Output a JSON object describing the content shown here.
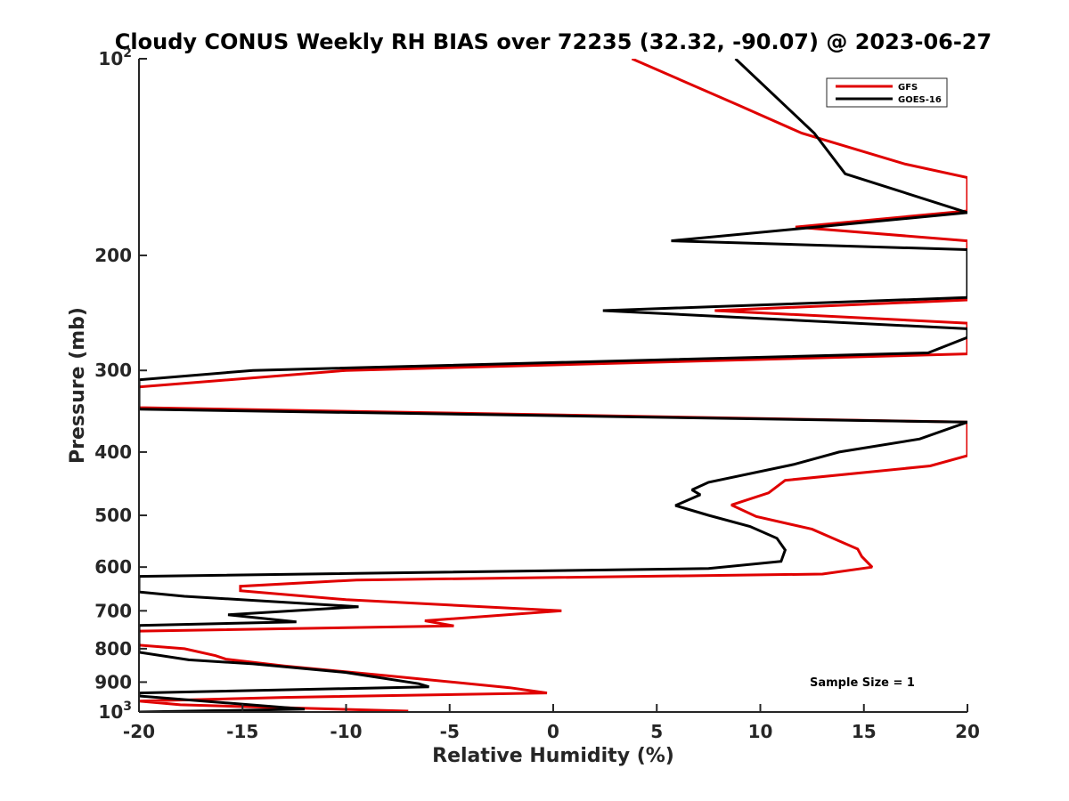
{
  "chart_data": {
    "type": "line",
    "title": "Cloudy CONUS Weekly RH BIAS over 72235 (32.32, -90.07) @ 2023-06-27",
    "xlabel": "Relative Humidity (%)",
    "ylabel": "Pressure (mb)",
    "xlim": [
      -20,
      20
    ],
    "ylim": [
      100,
      1000
    ],
    "yscale": "log",
    "yreverse": true,
    "x_ticks": [
      -20,
      -15,
      -10,
      -5,
      0,
      5,
      10,
      15,
      20
    ],
    "x_tick_labels": [
      "-20",
      "-15",
      "-10",
      "-5",
      "0",
      "5",
      "10",
      "15",
      "20"
    ],
    "y_ticks": [
      100,
      200,
      300,
      400,
      500,
      600,
      700,
      800,
      900,
      1000
    ],
    "y_tick_labels": [
      "10^2",
      "200",
      "300",
      "400",
      "500",
      "600",
      "700",
      "800",
      "900",
      "10^3"
    ],
    "legend_position": "top-right",
    "annotation": "Sample Size = 1",
    "series": [
      {
        "name": "GFS",
        "color": "#e00000",
        "points": [
          [
            3.8,
            100
          ],
          [
            9,
            118
          ],
          [
            12,
            130
          ],
          [
            17,
            145
          ],
          [
            20,
            152
          ],
          [
            20,
            171
          ],
          [
            11.7,
            181
          ],
          [
            20,
            190
          ],
          [
            20,
            234
          ],
          [
            7.8,
            243
          ],
          [
            20,
            254
          ],
          [
            20,
            283
          ],
          [
            -10,
            300
          ],
          [
            -20,
            318
          ],
          [
            -20,
            342
          ],
          [
            20,
            360
          ],
          [
            20,
            405
          ],
          [
            18.2,
            420
          ],
          [
            11.2,
            442
          ],
          [
            10.4,
            462
          ],
          [
            8.6,
            482
          ],
          [
            9.8,
            502
          ],
          [
            12.5,
            525
          ],
          [
            13.5,
            542
          ],
          [
            14.7,
            563
          ],
          [
            14.9,
            578
          ],
          [
            15.4,
            600
          ],
          [
            13,
            615
          ],
          [
            -9.5,
            628
          ],
          [
            -15.1,
            642
          ],
          [
            -15.1,
            652
          ],
          [
            -10,
            673
          ],
          [
            0.4,
            700
          ],
          [
            -6.2,
            725
          ],
          [
            -4.8,
            738
          ],
          [
            -20,
            752
          ],
          [
            -20,
            790
          ],
          [
            -17.8,
            800
          ],
          [
            -16.3,
            820
          ],
          [
            -15.8,
            830
          ],
          [
            -13,
            850
          ],
          [
            -8,
            880
          ],
          [
            -2.1,
            918
          ],
          [
            -0.3,
            935
          ],
          [
            -13,
            950
          ],
          [
            -20,
            962
          ],
          [
            -18,
            975
          ],
          [
            -7,
            997
          ]
        ]
      },
      {
        "name": "GOES-16",
        "color": "#000000",
        "points": [
          [
            8.8,
            100
          ],
          [
            12.6,
            130
          ],
          [
            14.1,
            150
          ],
          [
            20,
            172
          ],
          [
            5.7,
            190
          ],
          [
            20,
            196
          ],
          [
            20,
            232
          ],
          [
            2.4,
            243
          ],
          [
            20,
            259
          ],
          [
            20,
            267
          ],
          [
            18.1,
            282
          ],
          [
            -14.5,
            300
          ],
          [
            -20,
            310
          ],
          [
            -20,
            344
          ],
          [
            20,
            360
          ],
          [
            17.7,
            382
          ],
          [
            13.8,
            400
          ],
          [
            11.6,
            418
          ],
          [
            7.5,
            445
          ],
          [
            6.7,
            457
          ],
          [
            7.1,
            465
          ],
          [
            5.9,
            483
          ],
          [
            7.5,
            500
          ],
          [
            9.5,
            520
          ],
          [
            10.8,
            542
          ],
          [
            11.2,
            565
          ],
          [
            11,
            588
          ],
          [
            7.5,
            603
          ],
          [
            -20,
            620
          ],
          [
            -20,
            655
          ],
          [
            -17.8,
            665
          ],
          [
            -9.4,
            690
          ],
          [
            -15.7,
            710
          ],
          [
            -12.4,
            728
          ],
          [
            -20,
            737
          ],
          [
            -20,
            756
          ],
          [
            -20,
            810
          ],
          [
            -17.6,
            832
          ],
          [
            -14.5,
            844
          ],
          [
            -10,
            870
          ],
          [
            -6.5,
            905
          ],
          [
            -6,
            915
          ],
          [
            -20,
            935
          ],
          [
            -20,
            945
          ],
          [
            -12,
            990
          ],
          [
            -20,
            1000
          ]
        ]
      }
    ]
  }
}
